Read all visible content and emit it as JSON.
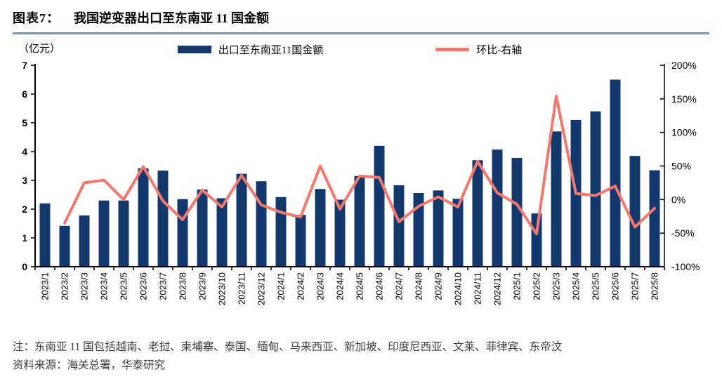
{
  "figure": {
    "label": "图表7：",
    "title": "我国逆变器出口至东南亚 11 国金额",
    "rule_color": "#7b97b0"
  },
  "chart_data": {
    "type": "bar",
    "subtype": "combo-bar-line",
    "categories": [
      "2023/1",
      "2023/2",
      "2023/3",
      "2023/4",
      "2023/5",
      "2023/6",
      "2023/7",
      "2023/8",
      "2023/9",
      "2023/10",
      "2023/11",
      "2023/12",
      "2024/1",
      "2024/2",
      "2024/3",
      "2024/4",
      "2024/5",
      "2024/6",
      "2024/7",
      "2024/8",
      "2024/9",
      "2024/10",
      "2024/11",
      "2024/12",
      "2025/1",
      "2025/2",
      "2025/3",
      "2025/4",
      "2025/5",
      "2025/6",
      "2025/7",
      "2025/8"
    ],
    "series": [
      {
        "name": "出口至东南亚11国金额",
        "type": "bar",
        "axis": "left",
        "color": "#12386e",
        "values": [
          2.2,
          1.42,
          1.78,
          2.3,
          2.3,
          3.42,
          3.34,
          2.35,
          2.68,
          2.38,
          3.23,
          2.97,
          2.42,
          1.8,
          2.7,
          2.33,
          3.15,
          4.2,
          2.83,
          2.56,
          2.65,
          2.36,
          3.7,
          4.07,
          3.78,
          1.85,
          4.7,
          5.1,
          5.4,
          6.5,
          3.85,
          3.35
        ]
      },
      {
        "name": "环比-右轴",
        "type": "line",
        "axis": "right",
        "color": "#f5786e",
        "unit": "%",
        "values": [
          null,
          -35,
          25,
          29,
          0,
          49,
          -2,
          -30,
          14,
          -11,
          36,
          -8,
          -19,
          -26,
          50,
          -14,
          35,
          33,
          -33,
          -10,
          4,
          -11,
          57,
          10,
          -7,
          -51,
          154,
          9,
          6,
          20,
          -41,
          -13
        ]
      }
    ],
    "left_axis": {
      "unit_label": "（亿元）",
      "min": 0,
      "max": 7,
      "step": 1,
      "tick_values": [
        0,
        1,
        2,
        3,
        4,
        5,
        6,
        7
      ],
      "tick_labels": [
        "0",
        "1",
        "2",
        "3",
        "4",
        "5",
        "6",
        "7"
      ]
    },
    "right_axis": {
      "min": -100,
      "max": 200,
      "step": 50,
      "tick_values": [
        -100,
        -50,
        0,
        50,
        100,
        150,
        200
      ],
      "tick_labels": [
        "-100%",
        "-50%",
        "0%",
        "50%",
        "100%",
        "150%",
        "200%"
      ]
    },
    "grid": false,
    "legend_position": "top",
    "axis_color": "#000000"
  },
  "notes": {
    "note": "注：东南亚 11 国包括越南、老挝、柬埔寨、泰国、缅甸、马来西亚、新加坡、印度尼西亚、文莱、菲律宾、东帝汶",
    "source": "资料来源：海关总署，华泰研究"
  }
}
